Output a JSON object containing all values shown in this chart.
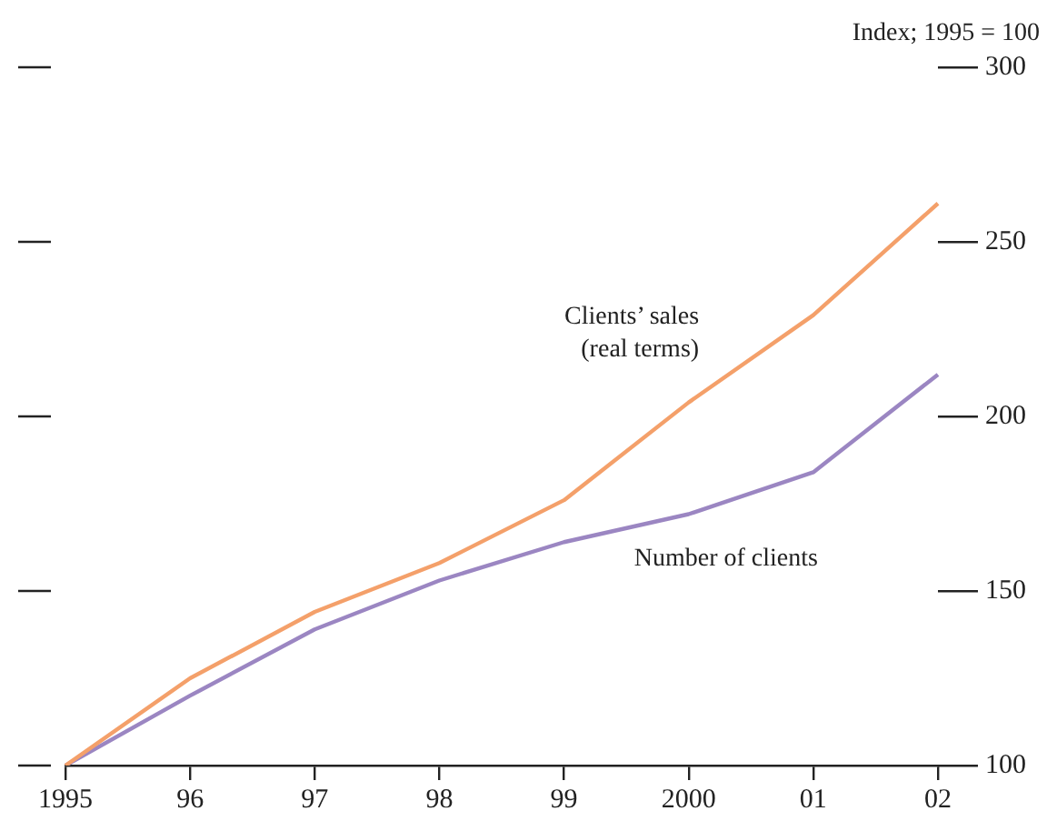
{
  "chart_data": {
    "type": "line",
    "ylabel": "Index; 1995 = 100",
    "categories": [
      "1995",
      "96",
      "97",
      "98",
      "99",
      "2000",
      "01",
      "02"
    ],
    "series": [
      {
        "name": "Clients’ sales\n(real terms)",
        "color": "#f4a06a",
        "values": [
          100,
          125,
          144,
          158,
          176,
          204,
          229,
          261
        ]
      },
      {
        "name": "Number of clients",
        "color": "#9b86c2",
        "values": [
          100,
          120,
          139,
          153,
          164,
          172,
          184,
          212
        ]
      }
    ],
    "ylim": [
      100,
      300
    ],
    "yticks": [
      100,
      150,
      200,
      250,
      300
    ],
    "grid": false,
    "legend": false,
    "marker": "none",
    "line_style": "solid"
  }
}
